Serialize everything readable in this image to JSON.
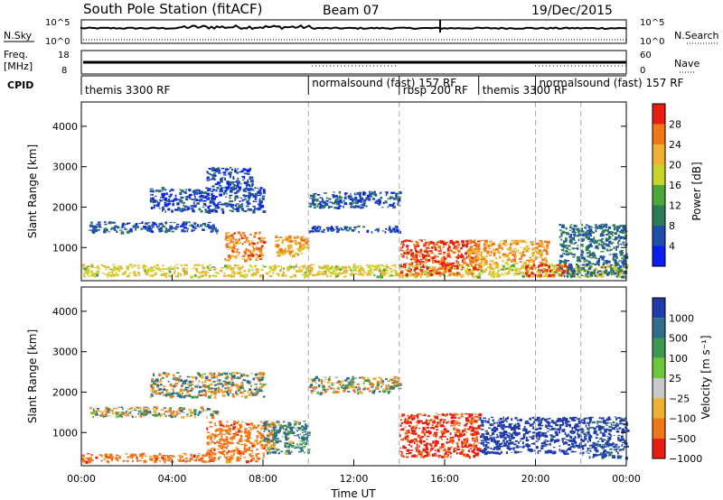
{
  "header": {
    "title": "South Pole Station (fitACF)",
    "beam": "Beam 07",
    "date": "19/Dec/2015"
  },
  "top_panels": {
    "nsky": {
      "label": "N.Sky",
      "ticks": [
        "10^5",
        "10^0"
      ]
    },
    "nsearch": {
      "label": "N.Search",
      "ticks": [
        "10^5",
        "10^0"
      ]
    },
    "freq": {
      "label_line1": "Freq.",
      "label_line2": "[MHz]",
      "ticks": [
        "18",
        "8"
      ]
    },
    "nave": {
      "label": "Nave",
      "ticks": [
        "60",
        "0"
      ]
    },
    "cpid": {
      "label": "CPID"
    }
  },
  "cpid_segments": [
    {
      "start_hr": 0.0,
      "end_hr": 10.0,
      "label": "themis 3300 RF",
      "row": 1
    },
    {
      "start_hr": 10.0,
      "end_hr": 14.0,
      "label": "normalsound (fast) 157 RF",
      "row": 0
    },
    {
      "start_hr": 14.0,
      "end_hr": 17.5,
      "label": "rbsp 200 RF",
      "row": 1
    },
    {
      "start_hr": 17.5,
      "end_hr": 20.0,
      "label": "themis 3300 RF",
      "row": 1
    },
    {
      "start_hr": 20.0,
      "end_hr": 24.0,
      "label": "normalsound (fast) 157 RF",
      "row": 0
    }
  ],
  "axes": {
    "xlabel": "Time UT",
    "x_ticks": [
      "00:00",
      "04:00",
      "08:00",
      "12:00",
      "16:00",
      "20:00",
      "00:00"
    ],
    "ylabel": "Slant Range [km]",
    "y_ticks": [
      "1000",
      "2000",
      "3000",
      "4000"
    ]
  },
  "power_colorbar": {
    "label": "Power [dB]",
    "ticks": [
      "4",
      "8",
      "12",
      "16",
      "20",
      "24",
      "28"
    ],
    "colors": [
      "#0a1ef0",
      "#1f4fa8",
      "#2e7b5a",
      "#4aa83a",
      "#c8d42a",
      "#f0b030",
      "#f07818",
      "#e81e10"
    ]
  },
  "velocity_colorbar": {
    "label": "Velocity [m s⁻¹]",
    "ticks": [
      "1000",
      "500",
      "100",
      "25",
      "−25",
      "−100",
      "−500",
      "−1000"
    ],
    "colors": [
      "#1f3ca8",
      "#2e6e8c",
      "#3a9a50",
      "#6cc83a",
      "#c8c8c8",
      "#f0b030",
      "#f07818",
      "#e81e10"
    ]
  },
  "chart_data": [
    {
      "type": "heatmap",
      "title": "South Pole Station (fitACF) Beam 07 19/Dec/2015",
      "quantity": "Power [dB]",
      "xlabel": "Time UT",
      "ylabel": "Slant Range [km]",
      "xlim_hr": [
        0,
        24
      ],
      "ylim_km": [
        180,
        4600
      ],
      "zlim": [
        0,
        30
      ],
      "mode_change_hr": [
        10,
        14,
        20,
        22
      ],
      "echo_regions": [
        {
          "t0": 0.3,
          "t1": 6.0,
          "r0": 1400,
          "r1": 1650,
          "value": 6
        },
        {
          "t0": 3.0,
          "t1": 8.0,
          "r0": 1900,
          "r1": 2500,
          "value": 5
        },
        {
          "t0": 5.5,
          "t1": 7.5,
          "r0": 2500,
          "r1": 3000,
          "value": 5
        },
        {
          "t0": 6.3,
          "t1": 8.0,
          "r0": 700,
          "r1": 1400,
          "value": 24
        },
        {
          "t0": 8.5,
          "t1": 10.0,
          "r0": 800,
          "r1": 1300,
          "value": 22
        },
        {
          "t0": 10.0,
          "t1": 14.0,
          "r0": 2000,
          "r1": 2400,
          "value": 6
        },
        {
          "t0": 10.0,
          "t1": 14.0,
          "r0": 1400,
          "r1": 1550,
          "value": 5
        },
        {
          "t0": 0.0,
          "t1": 24.0,
          "r0": 300,
          "r1": 600,
          "value": 18
        },
        {
          "t0": 14.0,
          "t1": 17.5,
          "r0": 350,
          "r1": 1200,
          "value": 26
        },
        {
          "t0": 17.0,
          "t1": 20.5,
          "r0": 600,
          "r1": 1200,
          "value": 22
        },
        {
          "t0": 19.5,
          "t1": 21.5,
          "r0": 300,
          "r1": 600,
          "value": 26
        },
        {
          "t0": 21.0,
          "t1": 24.0,
          "r0": 300,
          "r1": 1600,
          "value": 8
        }
      ]
    },
    {
      "type": "heatmap",
      "title": "",
      "quantity": "Velocity [m s⁻¹]",
      "xlabel": "Time UT",
      "ylabel": "Slant Range [km]",
      "xlim_hr": [
        0,
        24
      ],
      "ylim_km": [
        180,
        4600
      ],
      "zlim": [
        -1000,
        1000
      ],
      "mode_change_hr": [
        10,
        14,
        20,
        22
      ],
      "echo_regions": [
        {
          "t0": 0.3,
          "t1": 6.0,
          "r0": 1400,
          "r1": 1650,
          "value": 0
        },
        {
          "t0": 3.0,
          "t1": 8.0,
          "r0": 1900,
          "r1": 2500,
          "value": 0
        },
        {
          "t0": 5.5,
          "t1": 8.5,
          "r0": 500,
          "r1": 1300,
          "value": -300
        },
        {
          "t0": 8.0,
          "t1": 10.0,
          "r0": 500,
          "r1": 1300,
          "value": 200
        },
        {
          "t0": 10.0,
          "t1": 14.0,
          "r0": 2000,
          "r1": 2400,
          "value": 0
        },
        {
          "t0": 0.0,
          "t1": 8.0,
          "r0": 300,
          "r1": 500,
          "value": -300
        },
        {
          "t0": 14.0,
          "t1": 17.5,
          "r0": 400,
          "r1": 1500,
          "value": -600
        },
        {
          "t0": 17.5,
          "t1": 22.0,
          "r0": 500,
          "r1": 1400,
          "value": 800
        },
        {
          "t0": 22.0,
          "t1": 24.0,
          "r0": 400,
          "r1": 1400,
          "value": 600
        }
      ]
    }
  ]
}
